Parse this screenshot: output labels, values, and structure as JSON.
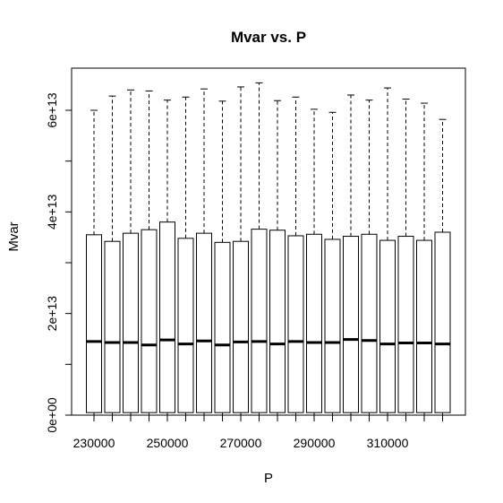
{
  "chart_data": {
    "type": "box",
    "title": "Mvar vs. P",
    "xlabel": "P",
    "ylabel": "Mvar",
    "x_tick_labels": [
      "230000",
      "250000",
      "270000",
      "290000",
      "310000"
    ],
    "y_tick_labels": [
      "0e+00",
      "2e+13",
      "4e+13",
      "6e+13"
    ],
    "y_ticks": [
      0,
      10000000000000,
      20000000000000,
      30000000000000,
      40000000000000,
      50000000000000,
      60000000000000
    ],
    "ylim": [
      0,
      65000000000000
    ],
    "categories": [
      230000,
      235000,
      240000,
      245000,
      250000,
      255000,
      260000,
      265000,
      270000,
      275000,
      280000,
      285000,
      290000,
      295000,
      300000,
      305000,
      310000,
      315000,
      320000,
      325000
    ],
    "boxes": [
      {
        "min": 0,
        "q1": 500000000000,
        "median": 14500000000000,
        "q3": 35500000000000,
        "max": 60000000000000
      },
      {
        "min": 0,
        "q1": 500000000000,
        "median": 14300000000000,
        "q3": 34200000000000,
        "max": 62800000000000
      },
      {
        "min": 0,
        "q1": 500000000000,
        "median": 14300000000000,
        "q3": 35800000000000,
        "max": 64000000000000
      },
      {
        "min": 0,
        "q1": 500000000000,
        "median": 13800000000000,
        "q3": 36500000000000,
        "max": 63800000000000
      },
      {
        "min": 0,
        "q1": 500000000000,
        "median": 14800000000000,
        "q3": 38000000000000,
        "max": 62000000000000
      },
      {
        "min": 0,
        "q1": 500000000000,
        "median": 14000000000000,
        "q3": 34800000000000,
        "max": 62600000000000
      },
      {
        "min": 0,
        "q1": 500000000000,
        "median": 14600000000000,
        "q3": 35800000000000,
        "max": 64200000000000
      },
      {
        "min": 0,
        "q1": 500000000000,
        "median": 13800000000000,
        "q3": 34000000000000,
        "max": 61800000000000
      },
      {
        "min": 0,
        "q1": 500000000000,
        "median": 14400000000000,
        "q3": 34200000000000,
        "max": 64600000000000
      },
      {
        "min": 0,
        "q1": 500000000000,
        "median": 14500000000000,
        "q3": 36600000000000,
        "max": 65400000000000
      },
      {
        "min": 0,
        "q1": 500000000000,
        "median": 14000000000000,
        "q3": 36400000000000,
        "max": 61900000000000
      },
      {
        "min": 0,
        "q1": 500000000000,
        "median": 14500000000000,
        "q3": 35300000000000,
        "max": 62600000000000
      },
      {
        "min": 0,
        "q1": 500000000000,
        "median": 14300000000000,
        "q3": 35600000000000,
        "max": 60200000000000
      },
      {
        "min": 0,
        "q1": 500000000000,
        "median": 14300000000000,
        "q3": 34600000000000,
        "max": 59600000000000
      },
      {
        "min": 0,
        "q1": 500000000000,
        "median": 14900000000000,
        "q3": 35200000000000,
        "max": 63000000000000
      },
      {
        "min": 0,
        "q1": 500000000000,
        "median": 14700000000000,
        "q3": 35600000000000,
        "max": 62000000000000
      },
      {
        "min": 0,
        "q1": 500000000000,
        "median": 14000000000000,
        "q3": 34400000000000,
        "max": 64400000000000
      },
      {
        "min": 0,
        "q1": 500000000000,
        "median": 14200000000000,
        "q3": 35200000000000,
        "max": 62200000000000
      },
      {
        "min": 0,
        "q1": 500000000000,
        "median": 14200000000000,
        "q3": 34400000000000,
        "max": 61400000000000
      },
      {
        "min": 0,
        "q1": 500000000000,
        "median": 14000000000000,
        "q3": 36000000000000,
        "max": 58200000000000
      }
    ],
    "grid": false,
    "legend": "none"
  },
  "colors": {
    "background": "#ffffff",
    "box_fill": "#ffffff",
    "stroke": "#000000"
  }
}
